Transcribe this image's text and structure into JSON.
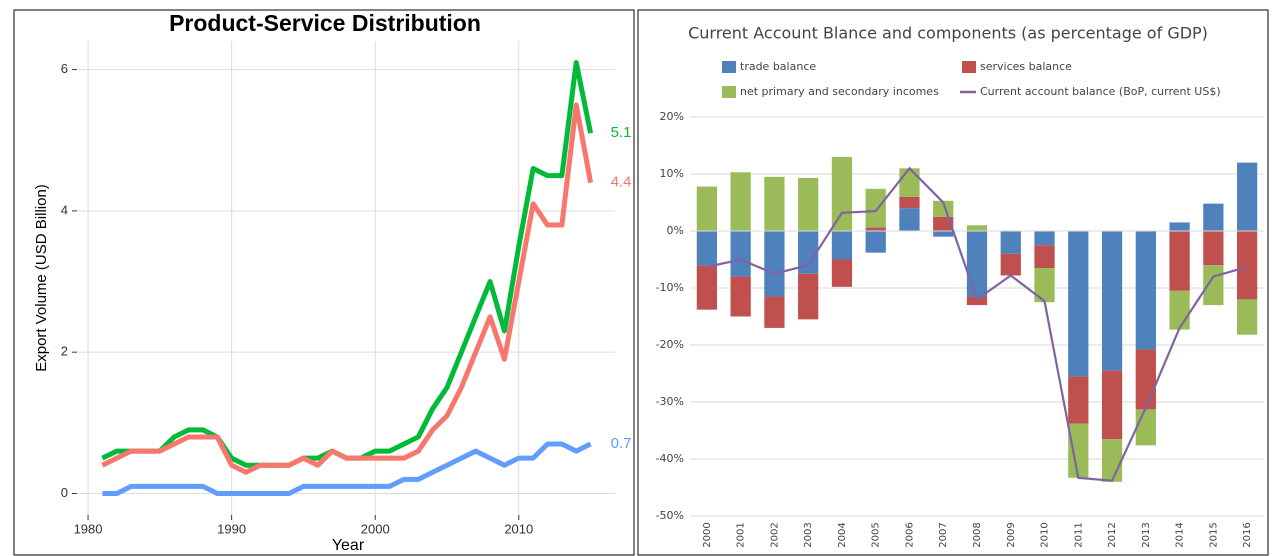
{
  "chart_data": [
    {
      "type": "line",
      "title": "Product-Service Distribution",
      "xlabel": "Year",
      "ylabel": "Export Volume (USD Billion)",
      "x": [
        1981,
        1982,
        1983,
        1984,
        1985,
        1986,
        1987,
        1988,
        1989,
        1990,
        1991,
        1992,
        1993,
        1994,
        1995,
        1996,
        1997,
        1998,
        1999,
        2000,
        2001,
        2002,
        2003,
        2004,
        2005,
        2006,
        2007,
        2008,
        2009,
        2010,
        2011,
        2012,
        2013,
        2014,
        2015
      ],
      "series": [
        {
          "color": "#00ba38",
          "values": [
            0.5,
            0.6,
            0.6,
            0.6,
            0.6,
            0.8,
            0.9,
            0.9,
            0.8,
            0.5,
            0.4,
            0.4,
            0.4,
            0.4,
            0.5,
            0.5,
            0.6,
            0.5,
            0.5,
            0.6,
            0.6,
            0.7,
            0.8,
            1.2,
            1.5,
            2.0,
            2.5,
            3.0,
            2.3,
            3.5,
            4.6,
            4.5,
            4.5,
            6.1,
            5.1
          ]
        },
        {
          "color": "#f8766d",
          "values": [
            0.4,
            0.5,
            0.6,
            0.6,
            0.6,
            0.7,
            0.8,
            0.8,
            0.8,
            0.4,
            0.3,
            0.4,
            0.4,
            0.4,
            0.5,
            0.4,
            0.6,
            0.5,
            0.5,
            0.5,
            0.5,
            0.5,
            0.6,
            0.9,
            1.1,
            1.5,
            2.0,
            2.5,
            1.9,
            3.0,
            4.1,
            3.8,
            3.8,
            5.5,
            4.4
          ]
        },
        {
          "color": "#619cff",
          "values": [
            0,
            0,
            0.1,
            0.1,
            0.1,
            0.1,
            0.1,
            0.1,
            0,
            0,
            0,
            0,
            0,
            0,
            0.1,
            0.1,
            0.1,
            0.1,
            0.1,
            0.1,
            0.1,
            0.2,
            0.2,
            0.3,
            0.4,
            0.5,
            0.6,
            0.5,
            0.4,
            0.5,
            0.5,
            0.7,
            0.7,
            0.6,
            0.7
          ]
        }
      ],
      "xlim": [
        1979.3,
        2016.7
      ],
      "xticks": [
        1980,
        1990,
        2000,
        2010
      ],
      "ylim": [
        -0.305,
        6.405
      ],
      "yticks": [
        0,
        2,
        4,
        6
      ],
      "grid": true,
      "end_labels": true
    },
    {
      "type": "bar",
      "stacked": true,
      "title": "Current Account Blance and components (as percentage of GDP)",
      "categories": [
        "2000",
        "2001",
        "2002",
        "2003",
        "2004",
        "2005",
        "2006",
        "2007",
        "2008",
        "2009",
        "2010",
        "2011",
        "2012",
        "2013",
        "2014",
        "2015",
        "2016"
      ],
      "series": [
        {
          "name": "trade balance",
          "color": "#4f81bd",
          "values": [
            -6,
            -8,
            -11.5,
            -7.5,
            -5,
            -3.8,
            4,
            -1,
            -11.5,
            -4,
            -2.5,
            -25.5,
            -24.5,
            -20.8,
            1.5,
            4.8,
            12
          ]
        },
        {
          "name": "services balance",
          "color": "#c0504d",
          "values": [
            -7.8,
            -7,
            -5.5,
            -8,
            -4.8,
            0.6,
            2,
            2.5,
            -1.5,
            -3.8,
            -4,
            -8.3,
            -12,
            -10.5,
            -10.5,
            -6,
            -12
          ]
        },
        {
          "name": "net primary and secondary incomes",
          "color": "#9bbb59",
          "values": [
            7.8,
            10.3,
            9.5,
            9.3,
            13,
            6.8,
            5,
            2.8,
            1,
            0,
            -6,
            -9.5,
            -7.5,
            -6.3,
            -6.8,
            -7,
            -6.2
          ]
        },
        {
          "name": "Current account balance (BoP, current US$)",
          "color": "#8064a2",
          "type": "line",
          "values": [
            -6.3,
            -5,
            -7.5,
            -6,
            3.2,
            3.5,
            11,
            5,
            -12,
            -7.8,
            -12.3,
            -43.3,
            -43.8,
            -31,
            -17,
            -8,
            -6.3
          ]
        }
      ],
      "ylim": [
        -50,
        20
      ],
      "yticks": [
        {
          "value": -50,
          "label": "-50%"
        },
        {
          "value": -40,
          "label": "-40%"
        },
        {
          "value": -30,
          "label": "-30%"
        },
        {
          "value": -20,
          "label": "-20%"
        },
        {
          "value": -10,
          "label": "-10%"
        },
        {
          "value": 0,
          "label": "0%"
        },
        {
          "value": 10,
          "label": "10%"
        },
        {
          "value": 20,
          "label": "20%"
        }
      ],
      "grid": true,
      "legend": "top"
    }
  ]
}
